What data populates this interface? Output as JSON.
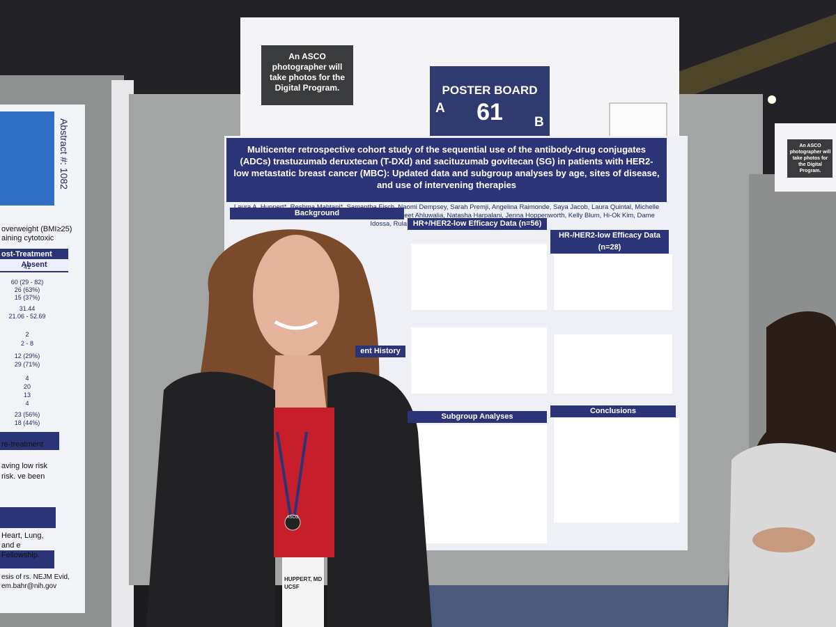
{
  "sign": {
    "note": "An ASCO photographer will take photos for the Digital Program.",
    "board_label": "POSTER BOARD",
    "side_a": "A",
    "number": "61",
    "side_b": "B"
  },
  "right_sign": {
    "note": "An ASCO photographer will take photos for the Digital Program."
  },
  "poster": {
    "title": "Multicenter retrospective cohort study of the sequential use of the antibody-drug conjugates (ADCs) trastuzumab deruxtecan (T-DXd) and sacituzumab govitecan (SG) in patients with HER2-low metastatic breast cancer (MBC): Updated data and subgroup analyses by age, sites of disease, and use of intervening therapies",
    "authors": "Laura A. Huppert*, Reshma Mahtani*, Samantha Fisch, Naomi Dempsey, Sarah Premji, Angelina Raimonde, Saya Jacob, Laura Quintal, Michelle Melisko, Jo Chien, Ana Sandoval, Lauren Carcas, Manmeet Ahluwalia, Natasha Harpalani, Jenna Hoppenworth, Kelly Blum, Hi-Ok Kim, Dame Idossa, Rula Rao, Karthik V. Giridhar, Hope S. Rugo",
    "sections": [
      "Background",
      "HR+/HER2-low Efficacy Data (n=56)",
      "HR-/HER2-low Efficacy Data (n=28)",
      "ent History",
      "Subgroup Analyses",
      "Conclusions"
    ]
  },
  "left_poster": {
    "abstract": "Abstract #: 1082",
    "notes": [
      "overweight (BMI≥25)",
      "aining cytotoxic",
      "re-treatment",
      "aving low risk risk. ve been",
      "Heart, Lung, and e Fellowship.",
      "esis of rs. NEJM Evid, em.bahr@nih.gov"
    ],
    "table_header": "ost-Treatment CHIP",
    "column": "Absent",
    "cells": [
      "41",
      "60 (29 - 82)",
      "26 (63%)",
      "15 (37%)",
      "31.44",
      "21.06 - 52.69",
      "2",
      "2 - 8",
      "12 (29%)",
      "29 (71%)",
      "4",
      "20",
      "13",
      "4",
      "23 (56%)",
      "18 (44%)"
    ]
  },
  "badge": {
    "clip": "ASCO",
    "name": "HUPPERT, MD",
    "org": "UCSF"
  }
}
